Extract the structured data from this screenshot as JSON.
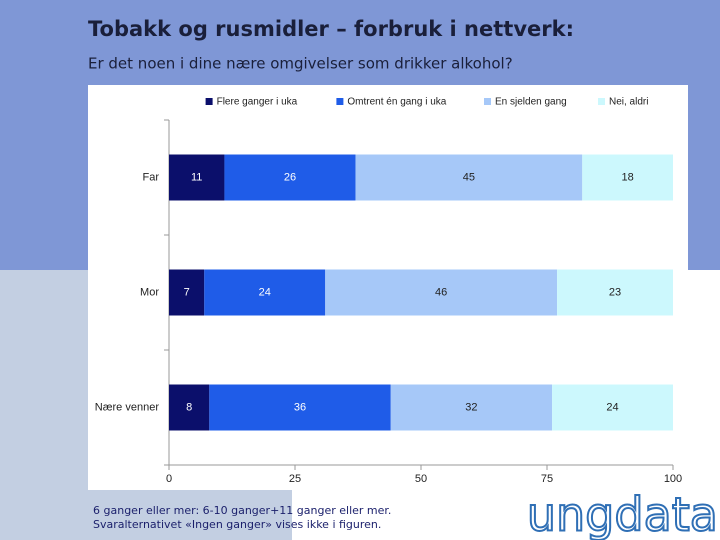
{
  "title": "Tobakk og rusmidler – forbruk i nettverk:",
  "subtitle": "Er det noen i dine nære omgivelser som drikker alkohol?",
  "chart_data": {
    "type": "bar",
    "orientation": "horizontal",
    "stacked": true,
    "categories": [
      "Far",
      "Mor",
      "Nære venner"
    ],
    "series": [
      {
        "name": "Flere ganger i uka",
        "color": "#0b0f6b",
        "values": [
          11,
          7,
          8
        ]
      },
      {
        "name": "Omtrent én gang i uka",
        "color": "#1f5ce8",
        "values": [
          26,
          24,
          36
        ]
      },
      {
        "name": "En sjelden gang",
        "color": "#a6c8f8",
        "values": [
          45,
          46,
          32
        ]
      },
      {
        "name": "Nei, aldri",
        "color": "#ccf8fd",
        "values": [
          18,
          23,
          24
        ]
      }
    ],
    "xlim": [
      0,
      100
    ],
    "xticks": [
      0,
      25,
      50,
      75,
      100
    ],
    "legend": "top-right"
  },
  "footnote": [
    "6 ganger eller mer: 6-10 ganger+11 ganger eller mer.",
    "Svaralternativet «Ingen ganger» vises ikke i figuren."
  ],
  "logo": "ungdata"
}
